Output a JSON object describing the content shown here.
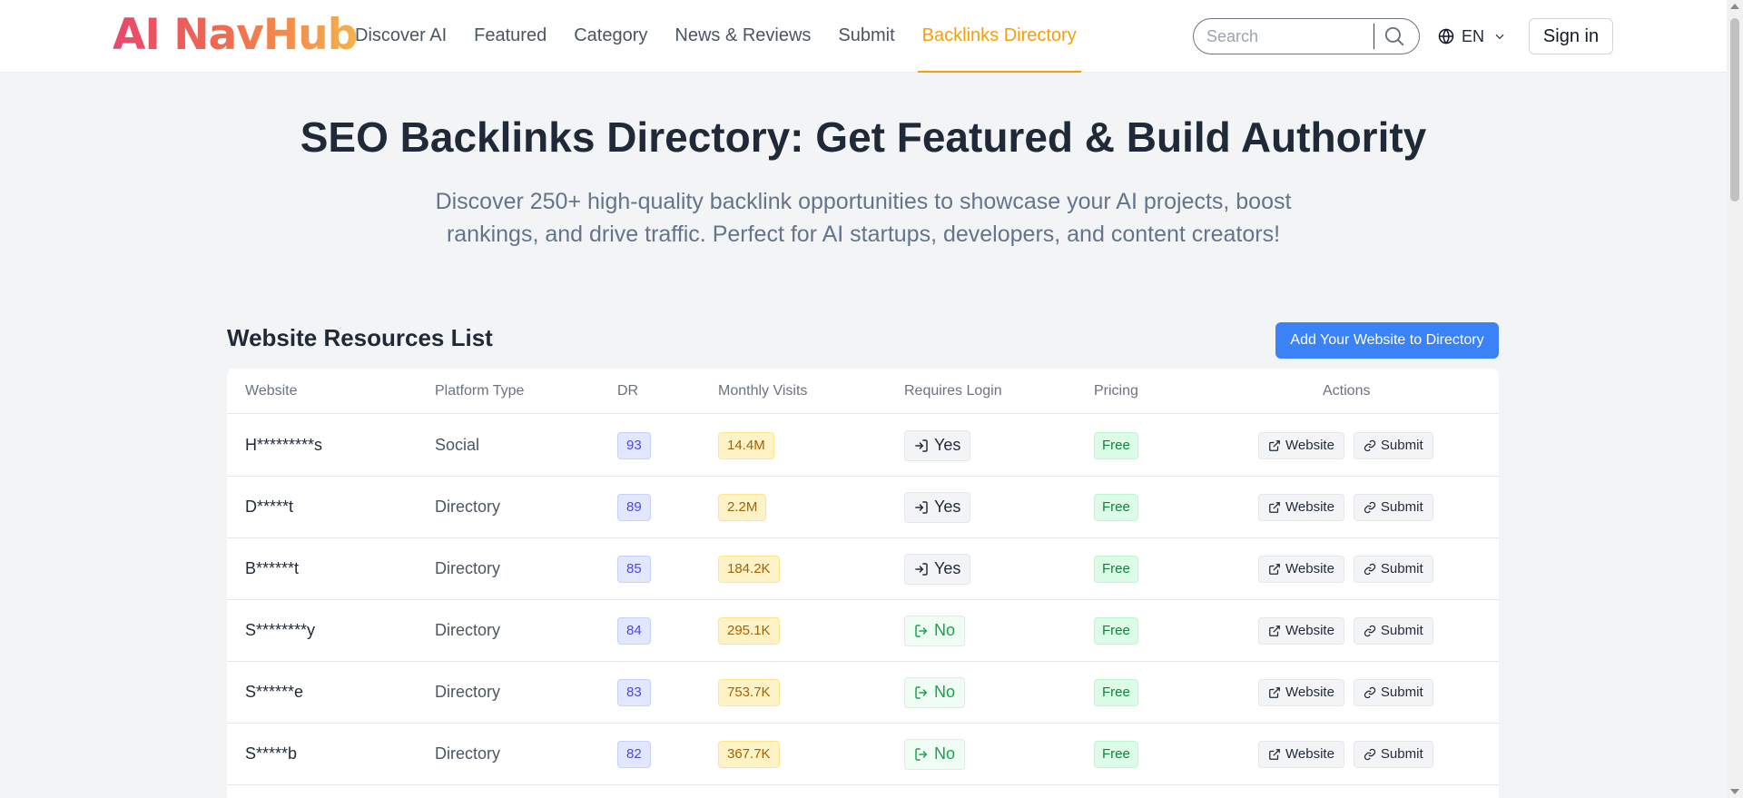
{
  "header": {
    "logo": "AI NavHub",
    "nav": [
      {
        "label": "Discover AI",
        "active": false
      },
      {
        "label": "Featured",
        "active": false
      },
      {
        "label": "Category",
        "active": false
      },
      {
        "label": "News & Reviews",
        "active": false
      },
      {
        "label": "Submit",
        "active": false
      },
      {
        "label": "Backlinks Directory",
        "active": true
      }
    ],
    "search_placeholder": "Search",
    "language": "EN",
    "signin_label": "Sign in",
    "accent_color": "#f59e0b"
  },
  "hero": {
    "title": "SEO Backlinks Directory: Get Featured & Build Authority",
    "subtitle": "Discover 250+ high-quality backlink opportunities to showcase your AI projects, boost rankings, and drive traffic. Perfect for AI startups, developers, and content creators!"
  },
  "list": {
    "title": "Website Resources List",
    "add_button": "Add Your Website to Directory",
    "columns": {
      "website": "Website",
      "platform": "Platform Type",
      "dr": "DR",
      "visits": "Monthly Visits",
      "login": "Requires Login",
      "pricing": "Pricing",
      "actions": "Actions"
    },
    "action_labels": {
      "website": "Website",
      "submit": "Submit"
    },
    "rows": [
      {
        "site": "H*********s",
        "platform": "Social",
        "dr": "93",
        "visits": "14.4M",
        "login": "Yes",
        "pricing": "Free"
      },
      {
        "site": "D*****t",
        "platform": "Directory",
        "dr": "89",
        "visits": "2.2M",
        "login": "Yes",
        "pricing": "Free"
      },
      {
        "site": "B******t",
        "platform": "Directory",
        "dr": "85",
        "visits": "184.2K",
        "login": "Yes",
        "pricing": "Free"
      },
      {
        "site": "S********y",
        "platform": "Directory",
        "dr": "84",
        "visits": "295.1K",
        "login": "No",
        "pricing": "Free"
      },
      {
        "site": "S******e",
        "platform": "Directory",
        "dr": "83",
        "visits": "753.7K",
        "login": "No",
        "pricing": "Free"
      },
      {
        "site": "S*****b",
        "platform": "Directory",
        "dr": "82",
        "visits": "367.7K",
        "login": "No",
        "pricing": "Free"
      }
    ]
  }
}
